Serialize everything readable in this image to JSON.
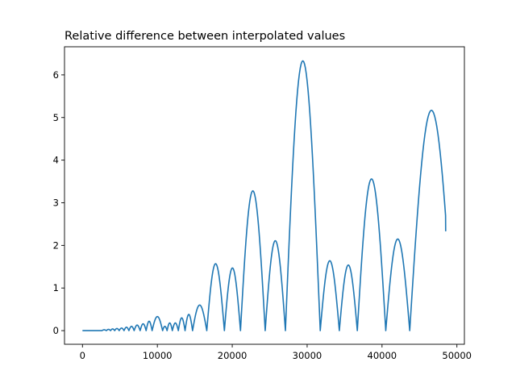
{
  "chart_data": {
    "type": "line",
    "title": "Relative difference between interpolated values",
    "xlabel": "",
    "ylabel": "",
    "xlim": [
      -2400,
      51000
    ],
    "ylim": [
      -0.32,
      6.66
    ],
    "x_ticks": [
      0,
      10000,
      20000,
      30000,
      40000,
      50000
    ],
    "x_tick_labels": [
      "0",
      "10000",
      "20000",
      "30000",
      "40000",
      "50000"
    ],
    "y_ticks": [
      0,
      1,
      2,
      3,
      4,
      5,
      6
    ],
    "y_tick_labels": [
      "0",
      "1",
      "2",
      "3",
      "4",
      "5",
      "6"
    ],
    "grid": false,
    "legend": "none",
    "series_color": "#1f77b4",
    "x_start": 0,
    "x_end": 48500,
    "end_value": 2.33,
    "flat_until": 2600,
    "arches": [
      {
        "start": 2600,
        "end": 3200,
        "peak": 0.02
      },
      {
        "start": 3200,
        "end": 3750,
        "peak": 0.03
      },
      {
        "start": 3750,
        "end": 4300,
        "peak": 0.04
      },
      {
        "start": 4300,
        "end": 4900,
        "peak": 0.05
      },
      {
        "start": 4900,
        "end": 5550,
        "peak": 0.06
      },
      {
        "start": 5550,
        "end": 6200,
        "peak": 0.08
      },
      {
        "start": 6200,
        "end": 6900,
        "peak": 0.1
      },
      {
        "start": 6900,
        "end": 7700,
        "peak": 0.13
      },
      {
        "start": 7700,
        "end": 8500,
        "peak": 0.16
      },
      {
        "start": 8500,
        "end": 9300,
        "peak": 0.22
      },
      {
        "start": 9300,
        "end": 10700,
        "peak": 0.33
      },
      {
        "start": 10700,
        "end": 11300,
        "peak": 0.1
      },
      {
        "start": 11300,
        "end": 12000,
        "peak": 0.18
      },
      {
        "start": 12000,
        "end": 12800,
        "peak": 0.18
      },
      {
        "start": 12800,
        "end": 13700,
        "peak": 0.3
      },
      {
        "start": 13700,
        "end": 14700,
        "peak": 0.38
      },
      {
        "start": 14700,
        "end": 16600,
        "peak": 0.6
      },
      {
        "start": 16600,
        "end": 18950,
        "peak": 1.57
      },
      {
        "start": 18950,
        "end": 21100,
        "peak": 1.47
      },
      {
        "start": 21100,
        "end": 24400,
        "peak": 3.28
      },
      {
        "start": 24400,
        "end": 27100,
        "peak": 2.11
      },
      {
        "start": 27100,
        "end": 31750,
        "peak": 6.33
      },
      {
        "start": 31750,
        "end": 34300,
        "peak": 1.64
      },
      {
        "start": 34300,
        "end": 36700,
        "peak": 1.54
      },
      {
        "start": 36700,
        "end": 40500,
        "peak": 3.56
      },
      {
        "start": 40500,
        "end": 43700,
        "peak": 2.15
      },
      {
        "start": 43700,
        "end": 49500,
        "peak": 5.17
      }
    ]
  }
}
